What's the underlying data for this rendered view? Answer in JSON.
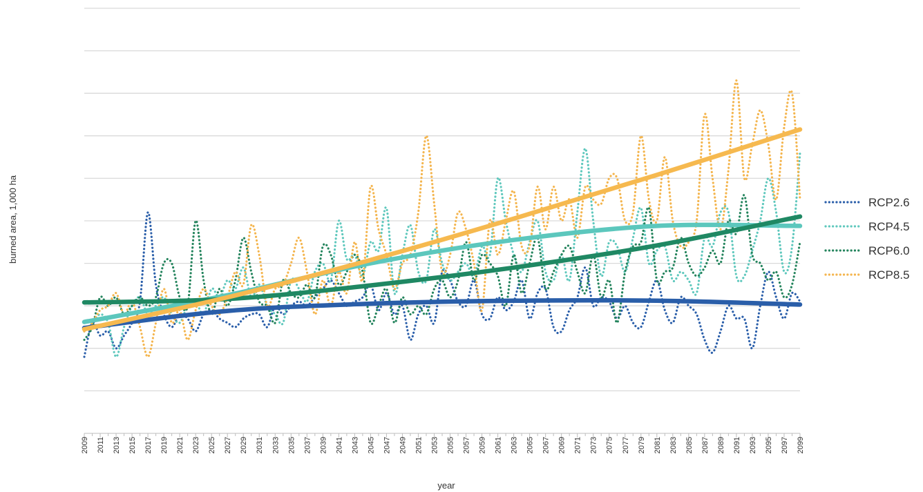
{
  "chart_data": {
    "type": "line",
    "xlabel": "year",
    "ylabel": "burned area, 1,000 ha",
    "legend_position": "right",
    "grid": true,
    "x_start": 2009,
    "x_end": 2099,
    "x_tick_step": 2,
    "ylim": [
      0,
      10
    ],
    "y_gridlines": [
      1,
      2,
      3,
      4,
      5,
      6,
      7,
      8,
      9,
      10
    ],
    "series": [
      {
        "name": "RCP2.6",
        "color": "#2b5faa",
        "trend_color": "#2a5ea9",
        "x": [
          2009,
          2010,
          2011,
          2012,
          2013,
          2014,
          2015,
          2016,
          2017,
          2018,
          2019,
          2020,
          2021,
          2022,
          2023,
          2024,
          2025,
          2026,
          2027,
          2028,
          2029,
          2030,
          2031,
          2032,
          2033,
          2034,
          2035,
          2036,
          2037,
          2038,
          2039,
          2040,
          2041,
          2042,
          2043,
          2044,
          2045,
          2046,
          2047,
          2048,
          2049,
          2050,
          2051,
          2052,
          2053,
          2054,
          2055,
          2056,
          2057,
          2058,
          2059,
          2060,
          2061,
          2062,
          2063,
          2064,
          2065,
          2066,
          2067,
          2068,
          2069,
          2070,
          2071,
          2072,
          2073,
          2074,
          2075,
          2076,
          2077,
          2078,
          2079,
          2080,
          2081,
          2082,
          2083,
          2084,
          2085,
          2086,
          2087,
          2088,
          2089,
          2090,
          2091,
          2092,
          2093,
          2094,
          2095,
          2096,
          2097,
          2098,
          2099
        ],
        "values": [
          1.8,
          2.6,
          2.3,
          2.4,
          2.0,
          2.3,
          2.6,
          3.1,
          5.2,
          3.5,
          2.8,
          2.5,
          2.8,
          2.7,
          2.4,
          2.8,
          2.9,
          2.7,
          2.6,
          2.5,
          2.7,
          2.8,
          2.8,
          2.5,
          3.0,
          2.8,
          3.0,
          3.1,
          3.0,
          3.2,
          3.4,
          3.6,
          3.3,
          3.0,
          3.1,
          3.2,
          3.5,
          2.9,
          3.3,
          2.8,
          3.0,
          2.2,
          2.8,
          3.0,
          2.6,
          3.8,
          3.6,
          3.1,
          3.0,
          3.6,
          2.8,
          2.7,
          3.2,
          2.9,
          3.1,
          3.6,
          2.7,
          3.3,
          3.4,
          2.5,
          2.4,
          2.9,
          3.2,
          3.9,
          3.0,
          3.2,
          3.1,
          2.7,
          3.0,
          2.6,
          2.5,
          3.1,
          3.6,
          2.9,
          2.6,
          3.2,
          3.0,
          2.8,
          2.2,
          1.9,
          2.4,
          3.0,
          2.7,
          2.7,
          2.0,
          3.0,
          3.8,
          3.2,
          2.7,
          3.3,
          3.1
        ],
        "trend": [
          2.48,
          2.88,
          3.05,
          3.12,
          3.12,
          3.03
        ]
      },
      {
        "name": "RCP4.5",
        "color": "#5fc8bd",
        "trend_color": "#5cc7bd",
        "x": [
          2009,
          2010,
          2011,
          2012,
          2013,
          2014,
          2015,
          2016,
          2017,
          2018,
          2019,
          2020,
          2021,
          2022,
          2023,
          2024,
          2025,
          2026,
          2027,
          2028,
          2029,
          2030,
          2031,
          2032,
          2033,
          2034,
          2035,
          2036,
          2037,
          2038,
          2039,
          2040,
          2041,
          2042,
          2043,
          2044,
          2045,
          2046,
          2047,
          2048,
          2049,
          2050,
          2051,
          2052,
          2053,
          2054,
          2055,
          2056,
          2057,
          2058,
          2059,
          2060,
          2061,
          2062,
          2063,
          2064,
          2065,
          2066,
          2067,
          2068,
          2069,
          2070,
          2071,
          2072,
          2073,
          2074,
          2075,
          2076,
          2077,
          2078,
          2079,
          2080,
          2081,
          2082,
          2083,
          2084,
          2085,
          2086,
          2087,
          2088,
          2089,
          2090,
          2091,
          2092,
          2093,
          2094,
          2095,
          2096,
          2097,
          2098,
          2099
        ],
        "values": [
          2.4,
          2.6,
          2.8,
          2.6,
          1.8,
          2.5,
          3.0,
          3.2,
          2.8,
          3.0,
          3.2,
          2.8,
          2.6,
          3.0,
          3.1,
          2.8,
          3.4,
          3.2,
          3.6,
          3.4,
          3.9,
          3.2,
          3.5,
          3.0,
          2.8,
          2.6,
          3.6,
          3.4,
          3.1,
          3.8,
          4.0,
          3.6,
          5.0,
          4.1,
          4.2,
          3.7,
          4.5,
          4.3,
          5.3,
          3.3,
          4.2,
          4.9,
          3.8,
          3.6,
          4.8,
          4.0,
          3.6,
          3.8,
          4.0,
          3.7,
          4.4,
          4.2,
          6.0,
          5.0,
          4.2,
          3.8,
          4.5,
          5.0,
          3.8,
          3.6,
          4.2,
          3.6,
          5.2,
          6.7,
          5.0,
          3.7,
          4.5,
          4.4,
          3.8,
          4.6,
          5.3,
          4.0,
          4.3,
          4.4,
          3.6,
          3.8,
          3.6,
          3.3,
          4.6,
          4.4,
          5.2,
          5.2,
          3.7,
          3.7,
          4.3,
          5.0,
          6.0,
          5.2,
          3.8,
          4.4,
          6.6
        ],
        "trend": [
          2.62,
          3.25,
          4.0,
          4.55,
          4.88,
          4.88
        ]
      },
      {
        "name": "RCP6.0",
        "color": "#24845d",
        "trend_color": "#1f8863",
        "x": [
          2009,
          2010,
          2011,
          2012,
          2013,
          2014,
          2015,
          2016,
          2017,
          2018,
          2019,
          2020,
          2021,
          2022,
          2023,
          2024,
          2025,
          2026,
          2027,
          2028,
          2029,
          2030,
          2031,
          2032,
          2033,
          2034,
          2035,
          2036,
          2037,
          2038,
          2039,
          2040,
          2041,
          2042,
          2043,
          2044,
          2045,
          2046,
          2047,
          2048,
          2049,
          2050,
          2051,
          2052,
          2053,
          2054,
          2055,
          2056,
          2057,
          2058,
          2059,
          2060,
          2061,
          2062,
          2063,
          2064,
          2065,
          2066,
          2067,
          2068,
          2069,
          2070,
          2071,
          2072,
          2073,
          2074,
          2075,
          2076,
          2077,
          2078,
          2079,
          2080,
          2081,
          2082,
          2083,
          2084,
          2085,
          2086,
          2087,
          2088,
          2089,
          2090,
          2091,
          2092,
          2093,
          2094,
          2095,
          2096,
          2097,
          2098,
          2099
        ],
        "values": [
          2.2,
          2.5,
          3.2,
          3.0,
          3.2,
          2.8,
          3.0,
          3.2,
          3.0,
          3.2,
          4.0,
          4.0,
          3.2,
          3.0,
          5.0,
          3.6,
          2.8,
          3.4,
          3.0,
          3.6,
          4.6,
          3.8,
          3.1,
          3.0,
          2.6,
          3.6,
          3.3,
          3.2,
          3.5,
          3.2,
          4.4,
          4.2,
          3.5,
          3.8,
          4.2,
          3.8,
          2.6,
          3.0,
          3.4,
          2.6,
          3.2,
          2.8,
          3.0,
          2.8,
          3.4,
          3.6,
          3.2,
          3.6,
          4.5,
          3.6,
          4.2,
          4.0,
          3.7,
          3.0,
          4.2,
          3.3,
          4.0,
          4.6,
          3.4,
          3.8,
          4.2,
          4.4,
          3.8,
          3.3,
          4.2,
          3.2,
          3.6,
          2.6,
          3.8,
          4.4,
          4.5,
          5.3,
          3.6,
          3.8,
          3.9,
          4.6,
          4.0,
          3.7,
          3.9,
          4.3,
          4.0,
          5.0,
          4.7,
          5.6,
          4.2,
          4.0,
          3.6,
          3.8,
          3.2,
          3.5,
          4.5
        ],
        "trend": [
          3.08,
          3.16,
          3.48,
          3.9,
          4.42,
          5.1
        ]
      },
      {
        "name": "RCP8.5",
        "color": "#f4b54e",
        "trend_color": "#f6b94f",
        "x": [
          2009,
          2010,
          2011,
          2012,
          2013,
          2014,
          2015,
          2016,
          2017,
          2018,
          2019,
          2020,
          2021,
          2022,
          2023,
          2024,
          2025,
          2026,
          2027,
          2028,
          2029,
          2030,
          2031,
          2032,
          2033,
          2034,
          2035,
          2036,
          2037,
          2038,
          2039,
          2040,
          2041,
          2042,
          2043,
          2044,
          2045,
          2046,
          2047,
          2048,
          2049,
          2050,
          2051,
          2052,
          2053,
          2054,
          2055,
          2056,
          2057,
          2058,
          2059,
          2060,
          2061,
          2062,
          2063,
          2064,
          2065,
          2066,
          2067,
          2068,
          2069,
          2070,
          2071,
          2072,
          2073,
          2074,
          2075,
          2076,
          2077,
          2078,
          2079,
          2080,
          2081,
          2082,
          2083,
          2084,
          2085,
          2086,
          2087,
          2088,
          2089,
          2090,
          2091,
          2092,
          2093,
          2094,
          2095,
          2096,
          2097,
          2098,
          2099
        ],
        "values": [
          2.4,
          2.6,
          2.9,
          3.0,
          3.3,
          2.8,
          3.1,
          2.5,
          1.8,
          2.6,
          3.4,
          2.6,
          2.9,
          2.2,
          2.9,
          3.4,
          3.0,
          2.8,
          3.2,
          3.8,
          3.5,
          4.9,
          4.2,
          3.0,
          3.4,
          3.5,
          4.0,
          4.6,
          3.8,
          2.8,
          3.6,
          3.0,
          3.8,
          3.3,
          4.5,
          3.6,
          5.8,
          4.8,
          4.2,
          3.4,
          4.0,
          4.2,
          5.2,
          7.0,
          5.4,
          3.8,
          4.2,
          5.2,
          4.8,
          4.0,
          2.9,
          5.0,
          4.2,
          5.0,
          5.7,
          4.4,
          4.4,
          5.8,
          4.8,
          5.8,
          5.0,
          5.5,
          4.6,
          5.8,
          5.5,
          5.4,
          6.0,
          6.0,
          5.0,
          5.2,
          7.0,
          5.5,
          5.0,
          6.5,
          5.0,
          4.4,
          4.5,
          5.0,
          7.5,
          6.0,
          4.8,
          6.2,
          8.3,
          6.0,
          6.8,
          7.6,
          6.8,
          5.5,
          7.2,
          8.0,
          5.5
        ],
        "trend": [
          2.45,
          3.2,
          4.08,
          5.05,
          6.08,
          7.15
        ]
      }
    ]
  }
}
